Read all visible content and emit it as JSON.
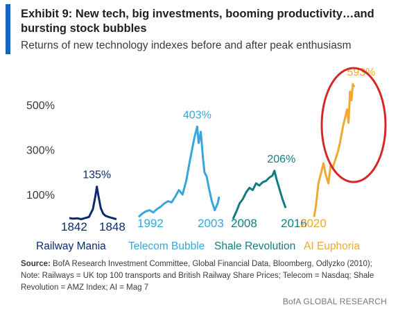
{
  "header": {
    "title": "Exhibit 9: New tech, big investments, booming productivity…and bursting stock bubbles",
    "subtitle": "Returns of new technology indexes before and after peak enthusiasm",
    "accent_color": "#1565c0"
  },
  "footer": {
    "source_label": "Source:",
    "source_text": "BofA Research Investment Committee, Global Financial Data, Bloomberg, Odlyzko (2010);",
    "note_text": "Note: Railways = UK top 100 transports and British Railway Share Prices; Telecom = Nasdaq; Shale Revolution = AMZ Index; AI = Mag 7",
    "brand": "BofA GLOBAL RESEARCH"
  },
  "chart_data": {
    "type": "line",
    "title": "Exhibit 9: New tech, big investments, booming productivity…and bursting stock bubbles",
    "subtitle": "Returns of new technology indexes before and after peak enthusiasm",
    "y_ticks": [
      "100%",
      "300%",
      "500%"
    ],
    "y_tick_values": [
      100,
      300,
      500
    ],
    "ylim": [
      -100,
      650
    ],
    "grid": false,
    "legend": "none",
    "annotation": {
      "type": "ellipse",
      "color": "#d62828",
      "around": "AI Euphoria peak"
    },
    "series": [
      {
        "name": "Railway Mania",
        "color": "#0b2a6b",
        "start_label": "1842",
        "end_label": "1848",
        "peak_label": "135%",
        "peak_value": 135,
        "x": [
          1842.0,
          1842.5,
          1843.0,
          1843.5,
          1844.0,
          1844.5,
          1845.0,
          1845.3,
          1845.5,
          1845.7,
          1846.0,
          1846.3,
          1846.6,
          1847.0,
          1847.5,
          1848.0
        ],
        "values": [
          -5,
          -8,
          -6,
          -10,
          -5,
          0,
          35,
          90,
          135,
          95,
          40,
          15,
          5,
          0,
          -5,
          -10
        ]
      },
      {
        "name": "Telecom Bubble",
        "color": "#35a7d8",
        "start_label": "1992",
        "end_label": "2003",
        "peak_label": "403%",
        "peak_value": 403,
        "x": [
          1992.0,
          1992.5,
          1993.0,
          1993.5,
          1994.0,
          1994.5,
          1995.0,
          1995.5,
          1996.0,
          1996.5,
          1997.0,
          1997.5,
          1998.0,
          1998.5,
          1999.0,
          1999.3,
          1999.6,
          2000.0,
          2000.2,
          2000.5,
          2000.8,
          2001.0,
          2001.3,
          2001.6,
          2002.0,
          2002.4,
          2002.8,
          2003.0
        ],
        "values": [
          0,
          15,
          25,
          30,
          20,
          35,
          45,
          60,
          70,
          65,
          90,
          120,
          100,
          160,
          250,
          300,
          350,
          403,
          330,
          380,
          260,
          200,
          180,
          130,
          70,
          30,
          60,
          90
        ]
      },
      {
        "name": "Shale Revolution",
        "color": "#137c80",
        "start_label": "2008",
        "end_label": "2016",
        "peak_label": "206%",
        "peak_value": 206,
        "x": [
          2008.0,
          2008.3,
          2008.6,
          2009.0,
          2009.5,
          2010.0,
          2010.5,
          2011.0,
          2011.5,
          2012.0,
          2012.5,
          2013.0,
          2013.5,
          2014.0,
          2014.3,
          2014.6,
          2015.0,
          2015.5,
          2016.0
        ],
        "values": [
          -10,
          10,
          30,
          60,
          80,
          110,
          130,
          120,
          150,
          140,
          155,
          160,
          175,
          185,
          206,
          170,
          130,
          80,
          40
        ]
      },
      {
        "name": "AI Euphoria",
        "color": "#f0a830",
        "start_label": "2020",
        "end_label": "",
        "peak_label": "593%",
        "peak_value": 593,
        "x": [
          2020.0,
          2020.3,
          2020.6,
          2021.0,
          2021.3,
          2021.6,
          2022.0,
          2022.3,
          2022.6,
          2023.0,
          2023.3,
          2023.6,
          2024.0,
          2024.3,
          2024.6,
          2024.8,
          2025.0,
          2025.2,
          2025.4,
          2025.6
        ],
        "values": [
          0,
          60,
          150,
          200,
          240,
          190,
          150,
          230,
          220,
          260,
          290,
          330,
          400,
          440,
          480,
          420,
          560,
          520,
          593,
          580
        ]
      }
    ]
  }
}
